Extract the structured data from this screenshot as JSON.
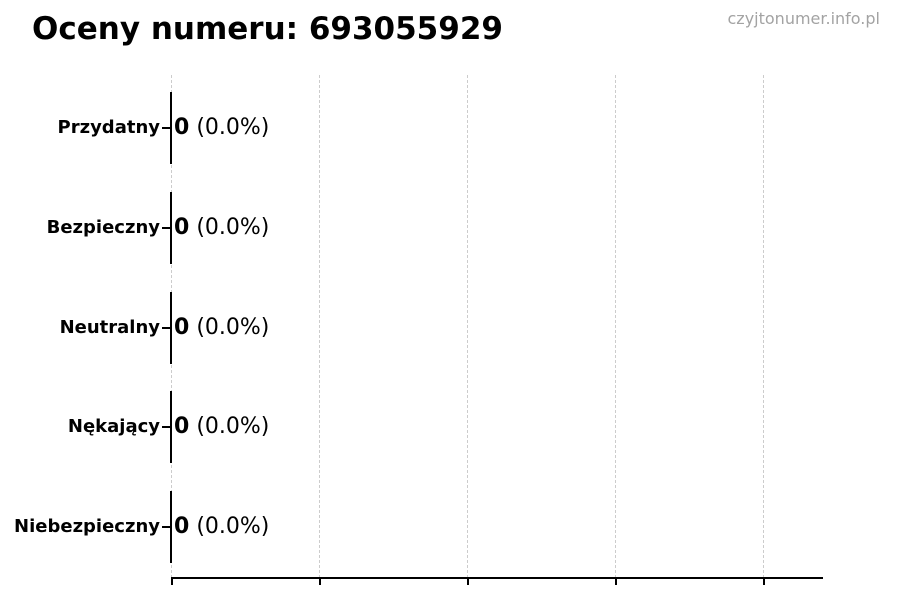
{
  "header": {
    "watermark": "czyjtonumer.info.pl"
  },
  "chart_data": {
    "type": "bar",
    "orientation": "horizontal",
    "title": "Oceny numeru: 693055929",
    "categories": [
      "Przydatny",
      "Bezpieczny",
      "Neutralny",
      "Nękający",
      "Niebezpieczny"
    ],
    "values": [
      0,
      0,
      0,
      0,
      0
    ],
    "value_labels": [
      {
        "count": "0",
        "percent": "(0.0%)"
      },
      {
        "count": "0",
        "percent": "(0.0%)"
      },
      {
        "count": "0",
        "percent": "(0.0%)"
      },
      {
        "count": "0",
        "percent": "(0.0%)"
      },
      {
        "count": "0",
        "percent": "(0.0%)"
      }
    ],
    "xlabel": "",
    "ylabel": "",
    "x_tick_labels_visible": false,
    "xlim_note": "5 unlabeled ticks, labels cropped out of image",
    "grid": {
      "orientation": "vertical",
      "style": "dashed",
      "count": 5
    },
    "legend": "none",
    "colors": {
      "bar": "#000000",
      "axis": "#000000",
      "grid": "#cccccc",
      "text": "#000000",
      "watermark": "#a3a3a3"
    }
  }
}
